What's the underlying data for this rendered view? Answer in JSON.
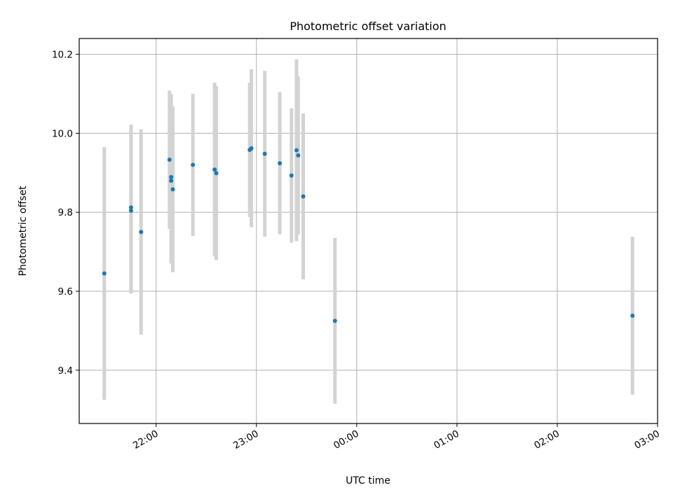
{
  "chart_data": {
    "type": "scatter",
    "title": "Photometric offset variation",
    "xlabel": "UTC time",
    "ylabel": "Photometric offset",
    "x_unit": "UTC time (HH:MM)",
    "xlim": [
      "21:14",
      "03:00"
    ],
    "ylim": [
      9.265,
      10.24
    ],
    "xticks": [
      "22:00",
      "23:00",
      "00:00",
      "01:00",
      "02:00",
      "03:00"
    ],
    "yticks": [
      9.4,
      9.6,
      9.8,
      10.0,
      10.2
    ],
    "grid": true,
    "colors": {
      "points": "#1f77b4",
      "errorbars": "#d3d3d3",
      "grid": "#b0b0b0"
    },
    "points": [
      {
        "x": "21:29",
        "y": 9.645,
        "err": 0.32
      },
      {
        "x": "21:45",
        "y": 9.812,
        "err": 0.21
      },
      {
        "x": "21:45",
        "y": 9.804,
        "err": 0.21
      },
      {
        "x": "21:51",
        "y": 9.75,
        "err": 0.26
      },
      {
        "x": "22:08",
        "y": 9.933,
        "err": 0.175
      },
      {
        "x": "22:09",
        "y": 9.889,
        "err": 0.21
      },
      {
        "x": "22:09",
        "y": 9.88,
        "err": 0.21
      },
      {
        "x": "22:10",
        "y": 9.858,
        "err": 0.21
      },
      {
        "x": "22:22",
        "y": 9.92,
        "err": 0.18
      },
      {
        "x": "22:35",
        "y": 9.908,
        "err": 0.22
      },
      {
        "x": "22:36",
        "y": 9.899,
        "err": 0.22
      },
      {
        "x": "22:56",
        "y": 9.958,
        "err": 0.17
      },
      {
        "x": "22:57",
        "y": 9.962,
        "err": 0.2
      },
      {
        "x": "23:05",
        "y": 9.948,
        "err": 0.21
      },
      {
        "x": "23:14",
        "y": 9.924,
        "err": 0.18
      },
      {
        "x": "23:21",
        "y": 9.893,
        "err": 0.17
      },
      {
        "x": "23:24",
        "y": 9.957,
        "err": 0.23
      },
      {
        "x": "23:25",
        "y": 9.944,
        "err": 0.2
      },
      {
        "x": "23:28",
        "y": 9.84,
        "err": 0.21
      },
      {
        "x": "23:47",
        "y": 9.525,
        "err": 0.21
      },
      {
        "x": "02:45",
        "y": 9.538,
        "err": 0.2
      }
    ]
  }
}
